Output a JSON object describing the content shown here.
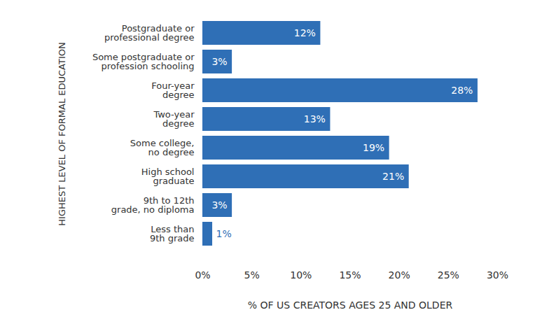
{
  "chart_data": {
    "type": "bar",
    "orientation": "horizontal",
    "categories": [
      "Postgraduate or professional degree",
      "Some postgraduate or profession schooling",
      "Four-year degree",
      "Two-year degree",
      "Some college, no degree",
      "High school graduate",
      "9th to 12th grade, no diploma",
      "Less than 9th grade"
    ],
    "values": [
      12,
      3,
      28,
      13,
      19,
      21,
      3,
      1
    ],
    "value_labels": [
      "12%",
      "3%",
      "28%",
      "13%",
      "19%",
      "21%",
      "3%",
      "1%"
    ],
    "data_labels": true,
    "color": "#2f6fb6",
    "xlabel": "% OF US CREATORS AGES 25 AND OLDER",
    "ylabel": "HIGHEST LEVEL OF FORMAL EDUCATION",
    "xlim": [
      0,
      30
    ],
    "xticks": [
      {
        "value": 0,
        "label": "0%"
      },
      {
        "value": 5,
        "label": "5%"
      },
      {
        "value": 10,
        "label": "10%"
      },
      {
        "value": 15,
        "label": "15%"
      },
      {
        "value": 20,
        "label": "20%"
      },
      {
        "value": 25,
        "label": "25%"
      },
      {
        "value": 30,
        "label": "30%"
      }
    ],
    "grid": false
  }
}
